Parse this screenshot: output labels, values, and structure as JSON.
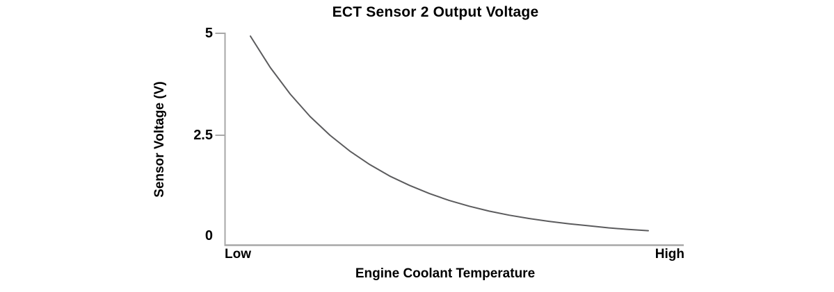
{
  "figure": {
    "background": "#ffffff"
  },
  "chart_data": {
    "type": "line",
    "title": "ECT Sensor 2 Output Voltage",
    "xlabel": "Engine Coolant Temperature",
    "ylabel": "Sensor Voltage (V)",
    "grid": false,
    "legend": "none",
    "x_axis": {
      "kind": "qualitative",
      "min_label": "Low",
      "max_label": "High",
      "range_normalized": [
        0,
        1
      ]
    },
    "y_axis": {
      "range": [
        0,
        5
      ],
      "ticks": [
        {
          "label": "5",
          "value": 5,
          "tick_mark": true
        },
        {
          "label": "2.5",
          "value": 2.5,
          "tick_mark": true
        },
        {
          "label": "0",
          "value": 0,
          "tick_mark": false
        }
      ]
    },
    "series": [
      {
        "name": "ECT Sensor 2 output voltage",
        "shape": "exponential-decay",
        "x": [
          0,
          0.05,
          0.1,
          0.15,
          0.2,
          0.25,
          0.3,
          0.35,
          0.4,
          0.45,
          0.5,
          0.55,
          0.6,
          0.65,
          0.7,
          0.75,
          0.8,
          0.85,
          0.9,
          0.95,
          1
        ],
        "y": [
          4.93,
          4.16,
          3.51,
          2.96,
          2.5,
          2.11,
          1.78,
          1.5,
          1.27,
          1.07,
          0.9,
          0.76,
          0.64,
          0.54,
          0.46,
          0.39,
          0.33,
          0.28,
          0.23,
          0.19,
          0.16
        ]
      }
    ],
    "colors": {
      "curve": "#5b5b5d",
      "axis": "#a7a7a7",
      "text": "#000000"
    }
  }
}
